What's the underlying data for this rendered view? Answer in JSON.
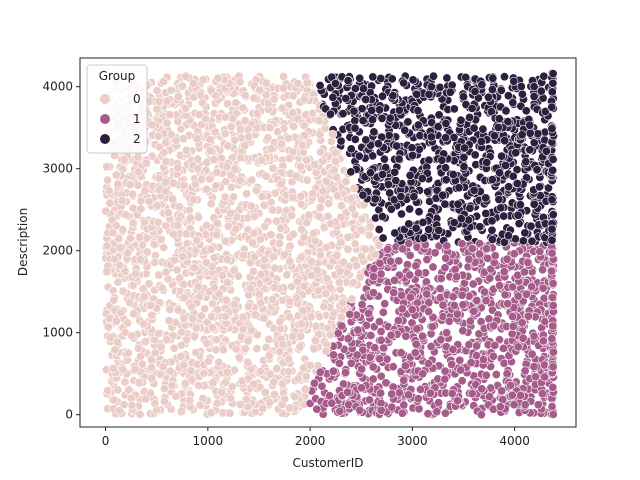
{
  "chart_data": {
    "type": "scatter",
    "xlabel": "CustomerID",
    "ylabel": "Description",
    "xlim": [
      -250,
      4600
    ],
    "ylim": [
      -150,
      4350
    ],
    "xticks": [
      0,
      1000,
      2000,
      3000,
      4000
    ],
    "yticks": [
      0,
      1000,
      2000,
      3000,
      4000
    ],
    "grid": false,
    "legend": {
      "title": "Group",
      "position": "top-left",
      "entries": [
        {
          "label": "0",
          "color": "#ebcdc8"
        },
        {
          "label": "1",
          "color": "#a65c8b"
        },
        {
          "label": "2",
          "color": "#2d1f3e"
        }
      ]
    },
    "series": [
      {
        "name": "0",
        "color": "#ebcdc8",
        "x_range": [
          0,
          2750
        ],
        "y_range": [
          0,
          4130
        ],
        "boundary": [
          [
            1900,
            0
          ],
          [
            2250,
            1000
          ],
          [
            2700,
            2100
          ],
          [
            2400,
            2900
          ],
          [
            2000,
            4130
          ]
        ]
      },
      {
        "name": "1",
        "color": "#a65c8b",
        "x_range": [
          1900,
          4380
        ],
        "y_range": [
          0,
          2100
        ]
      },
      {
        "name": "2",
        "color": "#2d1f3e",
        "x_range": [
          1950,
          4380
        ],
        "y_range": [
          2100,
          4200
        ]
      }
    ]
  }
}
